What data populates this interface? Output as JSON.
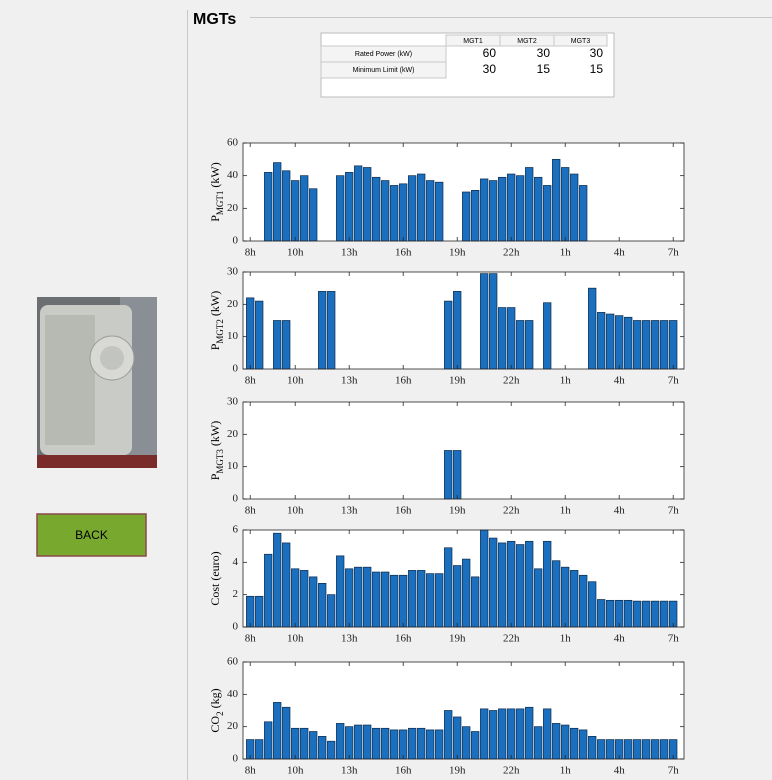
{
  "panel_title": "MGTs",
  "button": "BACK",
  "table": {
    "columns": [
      "MGT1",
      "MGT2",
      "MGT3"
    ],
    "rows": [
      [
        "Rated Power (kW)",
        "60",
        "30",
        "30"
      ],
      [
        "Minimum Limit (kW)",
        "30",
        "15",
        "15"
      ]
    ]
  },
  "chart_data": [
    {
      "type": "bar",
      "ylabel": [
        "P",
        "MGT1",
        " (kW)"
      ],
      "color": "#1b6fbf",
      "x": [
        1,
        2,
        3,
        4,
        5,
        6,
        7,
        8,
        9,
        10,
        11,
        12,
        13,
        14,
        15,
        16,
        17,
        18,
        19,
        20,
        21,
        22,
        23,
        24,
        25,
        26,
        27,
        28,
        29,
        30,
        31,
        32,
        33,
        34,
        35,
        36,
        37,
        38,
        39,
        40,
        41,
        42,
        43,
        44,
        45,
        46,
        47,
        48
      ],
      "values": [
        0,
        0,
        42,
        48,
        43,
        37,
        40,
        32,
        0,
        0,
        40,
        42,
        46,
        45,
        39,
        37,
        34,
        35,
        40,
        41,
        37,
        36,
        0,
        0,
        30,
        31,
        38,
        37,
        39,
        41,
        40,
        45,
        39,
        34,
        50,
        45,
        41,
        34,
        0,
        0,
        0,
        0,
        0,
        0,
        0,
        0,
        0,
        0
      ],
      "xlim": [
        0.2,
        49.2
      ],
      "ylim": [
        0,
        60
      ],
      "yticks": [
        0,
        20,
        40,
        60
      ],
      "xticks": [
        {
          "value": 1,
          "label": "8h"
        },
        {
          "value": 6,
          "label": "10h"
        },
        {
          "value": 12,
          "label": "13h"
        },
        {
          "value": 18,
          "label": "16h"
        },
        {
          "value": 24,
          "label": "19h"
        },
        {
          "value": 30,
          "label": "22h"
        },
        {
          "value": 36,
          "label": "1h"
        },
        {
          "value": 42,
          "label": "4h"
        },
        {
          "value": 48,
          "label": "7h"
        }
      ]
    },
    {
      "type": "bar",
      "ylabel": [
        "P",
        "MGT2",
        " (kW)"
      ],
      "color": "#1b6fbf",
      "x": [
        1,
        2,
        3,
        4,
        5,
        6,
        7,
        8,
        9,
        10,
        11,
        12,
        13,
        14,
        15,
        16,
        17,
        18,
        19,
        20,
        21,
        22,
        23,
        24,
        25,
        26,
        27,
        28,
        29,
        30,
        31,
        32,
        33,
        34,
        35,
        36,
        37,
        38,
        39,
        40,
        41,
        42,
        43,
        44,
        45,
        46,
        47,
        48
      ],
      "values": [
        22,
        21,
        0,
        15,
        15,
        0,
        0,
        0,
        24,
        24,
        0,
        0,
        0,
        0,
        0,
        0,
        0,
        0,
        0,
        0,
        0,
        0,
        21,
        24,
        0,
        0,
        29.5,
        29.5,
        19,
        19,
        15,
        15,
        0,
        20.5,
        0,
        0,
        0,
        0,
        25,
        17.5,
        17,
        16.5,
        16,
        15,
        15,
        15,
        15,
        15
      ],
      "xlim": [
        0.2,
        49.2
      ],
      "ylim": [
        0,
        30
      ],
      "yticks": [
        0,
        10,
        20,
        30
      ],
      "xticks": [
        {
          "value": 1,
          "label": "8h"
        },
        {
          "value": 6,
          "label": "10h"
        },
        {
          "value": 12,
          "label": "13h"
        },
        {
          "value": 18,
          "label": "16h"
        },
        {
          "value": 24,
          "label": "19h"
        },
        {
          "value": 30,
          "label": "22h"
        },
        {
          "value": 36,
          "label": "1h"
        },
        {
          "value": 42,
          "label": "4h"
        },
        {
          "value": 48,
          "label": "7h"
        }
      ]
    },
    {
      "type": "bar",
      "ylabel": [
        "P",
        "MGT3",
        " (kW)"
      ],
      "color": "#1b6fbf",
      "x": [
        1,
        2,
        3,
        4,
        5,
        6,
        7,
        8,
        9,
        10,
        11,
        12,
        13,
        14,
        15,
        16,
        17,
        18,
        19,
        20,
        21,
        22,
        23,
        24,
        25,
        26,
        27,
        28,
        29,
        30,
        31,
        32,
        33,
        34,
        35,
        36,
        37,
        38,
        39,
        40,
        41,
        42,
        43,
        44,
        45,
        46,
        47,
        48
      ],
      "values": [
        0,
        0,
        0,
        0,
        0,
        0,
        0,
        0,
        0,
        0,
        0,
        0,
        0,
        0,
        0,
        0,
        0,
        0,
        0,
        0,
        0,
        0,
        15,
        15,
        0,
        0,
        0,
        0,
        0,
        0,
        0,
        0,
        0,
        0,
        0,
        0,
        0,
        0,
        0,
        0,
        0,
        0,
        0,
        0,
        0,
        0,
        0,
        0
      ],
      "xlim": [
        0.2,
        49.2
      ],
      "ylim": [
        0,
        30
      ],
      "yticks": [
        0,
        10,
        20,
        30
      ],
      "xticks": [
        {
          "value": 1,
          "label": "8h"
        },
        {
          "value": 6,
          "label": "10h"
        },
        {
          "value": 12,
          "label": "13h"
        },
        {
          "value": 18,
          "label": "16h"
        },
        {
          "value": 24,
          "label": "19h"
        },
        {
          "value": 30,
          "label": "22h"
        },
        {
          "value": 36,
          "label": "1h"
        },
        {
          "value": 42,
          "label": "4h"
        },
        {
          "value": 48,
          "label": "7h"
        }
      ]
    },
    {
      "type": "bar",
      "ylabel": [
        "Cost (euro)"
      ],
      "color": "#1b6fbf",
      "x": [
        1,
        2,
        3,
        4,
        5,
        6,
        7,
        8,
        9,
        10,
        11,
        12,
        13,
        14,
        15,
        16,
        17,
        18,
        19,
        20,
        21,
        22,
        23,
        24,
        25,
        26,
        27,
        28,
        29,
        30,
        31,
        32,
        33,
        34,
        35,
        36,
        37,
        38,
        39,
        40,
        41,
        42,
        43,
        44,
        45,
        46,
        47,
        48
      ],
      "values": [
        1.9,
        1.9,
        4.5,
        5.8,
        5.2,
        3.6,
        3.5,
        3.1,
        2.7,
        2.0,
        4.4,
        3.6,
        3.7,
        3.7,
        3.4,
        3.4,
        3.2,
        3.2,
        3.5,
        3.5,
        3.3,
        3.3,
        4.9,
        3.8,
        4.2,
        3.1,
        6.0,
        5.5,
        5.2,
        5.3,
        5.1,
        5.3,
        3.6,
        5.3,
        4.1,
        3.7,
        3.5,
        3.2,
        2.8,
        1.7,
        1.65,
        1.65,
        1.65,
        1.6,
        1.6,
        1.6,
        1.6,
        1.6
      ],
      "xlim": [
        0.2,
        49.2
      ],
      "ylim": [
        0,
        6
      ],
      "yticks": [
        0,
        2,
        4,
        6
      ],
      "xticks": [
        {
          "value": 1,
          "label": "8h"
        },
        {
          "value": 6,
          "label": "10h"
        },
        {
          "value": 12,
          "label": "13h"
        },
        {
          "value": 18,
          "label": "16h"
        },
        {
          "value": 24,
          "label": "19h"
        },
        {
          "value": 30,
          "label": "22h"
        },
        {
          "value": 36,
          "label": "1h"
        },
        {
          "value": 42,
          "label": "4h"
        },
        {
          "value": 48,
          "label": "7h"
        }
      ]
    },
    {
      "type": "bar",
      "ylabel": [
        "CO",
        "2",
        " (kg)"
      ],
      "color": "#1b6fbf",
      "x": [
        1,
        2,
        3,
        4,
        5,
        6,
        7,
        8,
        9,
        10,
        11,
        12,
        13,
        14,
        15,
        16,
        17,
        18,
        19,
        20,
        21,
        22,
        23,
        24,
        25,
        26,
        27,
        28,
        29,
        30,
        31,
        32,
        33,
        34,
        35,
        36,
        37,
        38,
        39,
        40,
        41,
        42,
        43,
        44,
        45,
        46,
        47,
        48
      ],
      "values": [
        12,
        12,
        23,
        35,
        32,
        19,
        19,
        17,
        14,
        11,
        22,
        20,
        21,
        21,
        19,
        19,
        18,
        18,
        19,
        19,
        18,
        18,
        30,
        26,
        20,
        17,
        31,
        30,
        31,
        31,
        31,
        32,
        20,
        31,
        22,
        21,
        19,
        18,
        14,
        12,
        12,
        12,
        12,
        12,
        12,
        12,
        12,
        12
      ],
      "xlim": [
        0.2,
        49.2
      ],
      "ylim": [
        0,
        60
      ],
      "yticks": [
        0,
        20,
        40,
        60
      ],
      "xticks": [
        {
          "value": 1,
          "label": "8h"
        },
        {
          "value": 6,
          "label": "10h"
        },
        {
          "value": 12,
          "label": "13h"
        },
        {
          "value": 18,
          "label": "16h"
        },
        {
          "value": 24,
          "label": "19h"
        },
        {
          "value": 30,
          "label": "22h"
        },
        {
          "value": 36,
          "label": "1h"
        },
        {
          "value": 42,
          "label": "4h"
        },
        {
          "value": 48,
          "label": "7h"
        }
      ]
    }
  ]
}
